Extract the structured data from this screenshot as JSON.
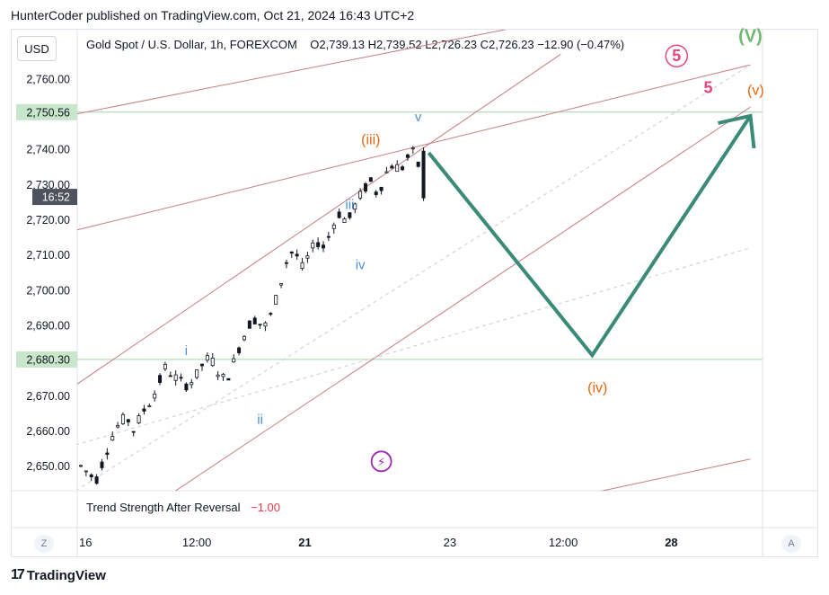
{
  "header": {
    "published": "HunterCoder published on TradingView.com, Oct 21, 2024 16:43 UTC+2"
  },
  "toolbar": {
    "currency": "USD"
  },
  "legend": {
    "symbol": "Gold Spot / U.S. Dollar, 1h, FOREXCOM",
    "ohlc": "O2,739.13  H2,739.52  L2,726.23  C2,726.23  −12.90 (−0.47%)"
  },
  "indicator": {
    "name": "Trend Strength After Reversal",
    "value": "−1.00"
  },
  "corner_buttons": {
    "left": "Z",
    "right": "A"
  },
  "brand": {
    "logo": "17",
    "name": "TradingView"
  },
  "colors": {
    "up_candle": "#131722",
    "channel": "#c77c83",
    "projection": "#3a8a78",
    "wave_blue": "#4a90d9",
    "wave_orange": "#e8650f",
    "wave_pink": "#e8457a",
    "wave_green": "#6fb86f",
    "hline": "#a5d6a7",
    "hline_label_bg": "#c8e6c9"
  },
  "chart_data": {
    "type": "candlestick",
    "ylim": [
      2643,
      2774
    ],
    "price_ticks": [
      "2,650.00",
      "2,660.00",
      "2,670.00",
      "2,680.00",
      "2,690.00",
      "2,700.00",
      "2,710.00",
      "2,720.00",
      "2,730.00",
      "2,740.00",
      "2,750.00",
      "2,760.00"
    ],
    "price_tick_values": [
      2650,
      2660,
      2670,
      2680,
      2690,
      2700,
      2710,
      2720,
      2730,
      2740,
      2750,
      2760
    ],
    "horizontal_lines": [
      {
        "value": 2750.56,
        "label": "2,750.56"
      },
      {
        "value": 2680.3,
        "label": "2,680.30"
      }
    ],
    "countdown": {
      "value": 2726.23,
      "label": "16:52"
    },
    "x_labels": [
      "16",
      "12:00",
      "21",
      "23",
      "12:00",
      "28"
    ],
    "x_label_bold": [
      false,
      false,
      true,
      false,
      false,
      true
    ],
    "x_label_index": [
      0.9,
      22,
      42.5,
      70,
      91.5,
      112
    ],
    "candles_count": 66,
    "price_path": [
      2650,
      2648,
      2646,
      2652,
      2658,
      2662,
      2664,
      2660,
      2665,
      2668,
      2672,
      2678,
      2676,
      2674,
      2673,
      2675,
      2679,
      2681,
      2677,
      2674,
      2679,
      2685,
      2690,
      2692,
      2689,
      2693,
      2700,
      2708,
      2712,
      2706,
      2710,
      2714,
      2712,
      2718,
      2722,
      2719,
      2724,
      2728,
      2731,
      2727,
      2733,
      2736,
      2734,
      2738,
      2739.5,
      2726.2
    ],
    "labels": [
      {
        "text": "i",
        "idx": 20,
        "y": 2681.5,
        "color": "wave_blue"
      },
      {
        "text": "ii",
        "idx": 34,
        "y": 2662,
        "color": "wave_blue"
      },
      {
        "text": "iii",
        "idx": 51,
        "y": 2723,
        "color": "wave_blue"
      },
      {
        "text": "iv",
        "idx": 53,
        "y": 2706,
        "color": "wave_blue"
      },
      {
        "text": "v",
        "idx": 64,
        "y": 2748,
        "color": "wave_blue"
      },
      {
        "text": "(iii)",
        "idx": 55,
        "y": 2741.5,
        "color": "wave_orange"
      },
      {
        "text": "(iv)",
        "idx": 98,
        "y": 2671,
        "color": "wave_orange"
      },
      {
        "text": "(v)",
        "idx": 128,
        "y": 2755.5,
        "color": "wave_orange"
      },
      {
        "text": "5",
        "idx": 119,
        "y": 2756,
        "color": "wave_pink"
      },
      {
        "text": "5",
        "idx": 113,
        "y": 2765,
        "color": "wave_pink",
        "circled": true
      },
      {
        "text": "(V)",
        "idx": 127,
        "y": 2770.5,
        "color": "wave_green"
      }
    ],
    "projection": [
      [
        66,
        2739
      ],
      [
        97,
        2681.5
      ],
      [
        127,
        2749.5
      ]
    ],
    "channels": [
      {
        "from": [
          -1,
          2750
        ],
        "to": [
          94,
          2778
        ]
      },
      {
        "from": [
          -1,
          2717
        ],
        "to": [
          127,
          2764
        ]
      },
      {
        "from": [
          -1,
          2673
        ],
        "to": [
          91,
          2767
        ]
      },
      {
        "from": [
          -1,
          2624
        ],
        "to": [
          127,
          2752
        ]
      },
      {
        "from": [
          71,
          2634
        ],
        "to": [
          127,
          2652
        ]
      }
    ],
    "dashed_lines": [
      {
        "from": [
          -1,
          2656
        ],
        "to": [
          127,
          2712
        ]
      },
      {
        "from": [
          -1,
          2643
        ],
        "to": [
          127,
          2764
        ]
      }
    ],
    "icon": {
      "name": "lightning-icon",
      "idx": 57,
      "y": 2647
    }
  }
}
